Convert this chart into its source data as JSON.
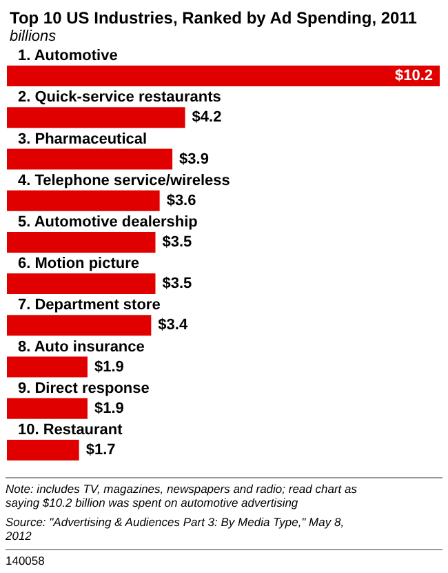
{
  "chart_data": {
    "type": "bar",
    "orientation": "horizontal",
    "title": "Top 10 US Industries, Ranked by Ad Spending, 2011",
    "subtitle": "billions",
    "categories": [
      "1. Automotive",
      "2. Quick-service restaurants",
      "3. Pharmaceutical",
      "4. Telephone service/wireless",
      "5. Automotive dealership",
      "6. Motion picture",
      "7. Department store",
      "8. Auto insurance",
      "9. Direct response",
      "10. Restaurant"
    ],
    "values": [
      10.2,
      4.2,
      3.9,
      3.6,
      3.5,
      3.5,
      3.4,
      1.9,
      1.9,
      1.7
    ],
    "value_labels": [
      "$10.2",
      "$4.2",
      "$3.9",
      "$3.6",
      "$3.5",
      "$3.5",
      "$3.4",
      "$1.9",
      "$1.9",
      "$1.7"
    ],
    "color": "#e00000",
    "annotations": [
      "Note: includes TV, magazines, newspapers and radio; read chart as saying $10.2 billion was spent on automotive advertising",
      "Source: \"Advertising & Audiences Part 3: By Media Type,\" May 8, 2012",
      "140058"
    ]
  }
}
